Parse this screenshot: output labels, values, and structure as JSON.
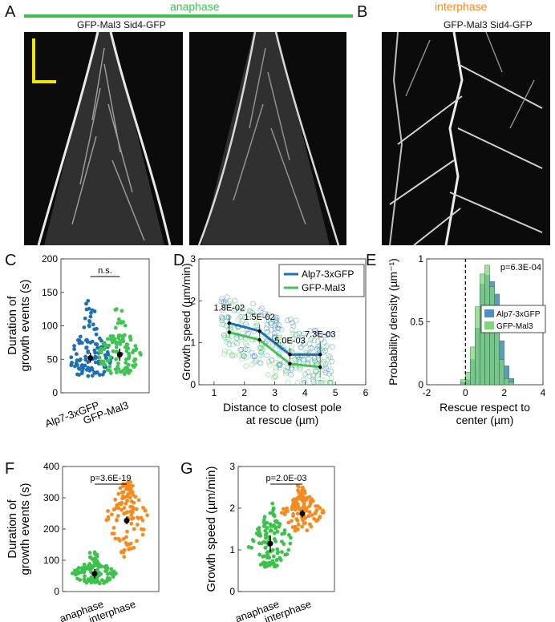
{
  "panel_letters": {
    "a": "A",
    "b": "B",
    "c": "C",
    "d": "D",
    "e": "E",
    "f": "F",
    "g": "G"
  },
  "kymographs": {
    "anaphase_label": "anaphase",
    "interphase_label": "interphase",
    "a_channel_label": "GFP-Mal3 Sid4-GFP",
    "b_channel_label": "GFP-Mal3 Sid4-GFP"
  },
  "colors": {
    "anaphase": "#3cc24b",
    "interphase": "#f58a1f",
    "alp7": "#1f6fb5",
    "mal3": "#41c453",
    "scale_bar": "#f2e600"
  },
  "chart_data": [
    {
      "id": "C",
      "type": "scatter",
      "categories": [
        "Alp7-3xGFP",
        "GFP-Mal3"
      ],
      "ylabel": [
        "Duration of",
        "growth events (s)"
      ],
      "ylim": [
        0,
        200
      ],
      "yticks": [
        0,
        50,
        100,
        150,
        200
      ],
      "annotation": "n.s.",
      "series": [
        {
          "category": "Alp7-3xGFP",
          "mean": 52,
          "ci": [
            45,
            60
          ],
          "min": 18,
          "max": 140
        },
        {
          "category": "GFP-Mal3",
          "mean": 57,
          "ci": [
            48,
            66
          ],
          "min": 20,
          "max": 127
        }
      ]
    },
    {
      "id": "D",
      "type": "line",
      "xlabel": [
        "Distance to closest pole",
        "at rescue (µm)"
      ],
      "ylabel": "Growth speed (µm/min)",
      "xlim": [
        0.5,
        6
      ],
      "ylim": [
        0,
        3
      ],
      "xticks": [
        1,
        2,
        3,
        4,
        5,
        6
      ],
      "yticks": [
        0,
        1,
        2,
        3
      ],
      "legend": "top-right",
      "series": [
        {
          "name": "Alp7-3xGFP",
          "x": [
            1.5,
            2.5,
            3.5,
            4.5
          ],
          "y": [
            1.47,
            1.28,
            0.72,
            0.72
          ],
          "err": [
            0.18,
            0.15,
            0.15,
            0.3
          ]
        },
        {
          "name": "GFP-Mal3",
          "x": [
            1.5,
            2.5,
            3.5,
            4.5
          ],
          "y": [
            1.25,
            1.07,
            0.5,
            0.42
          ],
          "err": [
            0.1,
            0.1,
            0.12,
            0.25
          ]
        }
      ],
      "pvalues": [
        {
          "x": 1.5,
          "label": "1.8E-02"
        },
        {
          "x": 2.5,
          "label": "1.5E-02"
        },
        {
          "x": 3.5,
          "label": "5.0E-03"
        },
        {
          "x": 4.5,
          "label": "7.3E-03"
        }
      ]
    },
    {
      "id": "E",
      "type": "bar",
      "xlabel": [
        "Rescue respect to",
        "center (µm)"
      ],
      "ylabel": "Probability density (µm⁻¹)",
      "xlim": [
        -2,
        4
      ],
      "ylim": [
        0,
        1
      ],
      "xticks": [
        -2,
        0,
        2,
        4
      ],
      "yticks": [
        0,
        0.5,
        1
      ],
      "annotation": "p=6.3E-04",
      "legend": "right",
      "bin_starts": [
        -0.25,
        0.0,
        0.25,
        0.5,
        0.75,
        1.0,
        1.25,
        1.5,
        1.75,
        2.0,
        2.25
      ],
      "bin_width": 0.25,
      "series": [
        {
          "name": "Alp7-3xGFP",
          "values": [
            0.02,
            0.04,
            0.2,
            0.45,
            0.8,
            0.87,
            0.82,
            0.72,
            0.35,
            0.15,
            0.05
          ]
        },
        {
          "name": "GFP-Mal3",
          "values": [
            0.04,
            0.1,
            0.3,
            0.62,
            0.88,
            0.95,
            0.78,
            0.42,
            0.2,
            0.05,
            0.02
          ]
        }
      ]
    },
    {
      "id": "F",
      "type": "scatter",
      "categories": [
        "anaphase",
        "interphase"
      ],
      "ylabel": [
        "Duration of",
        "growth events (s)"
      ],
      "ylim": [
        0,
        400
      ],
      "yticks": [
        0,
        100,
        200,
        300,
        400
      ],
      "annotation": "p=3.6E-19",
      "series": [
        {
          "category": "anaphase",
          "mean": 57,
          "ci": [
            42,
            72
          ],
          "min": 18,
          "max": 127
        },
        {
          "category": "interphase",
          "mean": 227,
          "ci": [
            215,
            240
          ],
          "min": 72,
          "max": 350
        }
      ]
    },
    {
      "id": "G",
      "type": "scatter",
      "categories": [
        "anaphase",
        "interphase"
      ],
      "ylabel": "Growth speed (µm/min)",
      "ylim": [
        0,
        3
      ],
      "yticks": [
        0,
        1,
        2,
        3
      ],
      "annotation": "p=2.0E-03",
      "series": [
        {
          "category": "anaphase",
          "mean": 1.15,
          "ci": [
            0.95,
            1.35
          ],
          "min": 0.45,
          "max": 2.2
        },
        {
          "category": "interphase",
          "mean": 1.87,
          "ci": [
            1.78,
            1.96
          ],
          "min": 1.35,
          "max": 2.55
        }
      ]
    }
  ]
}
